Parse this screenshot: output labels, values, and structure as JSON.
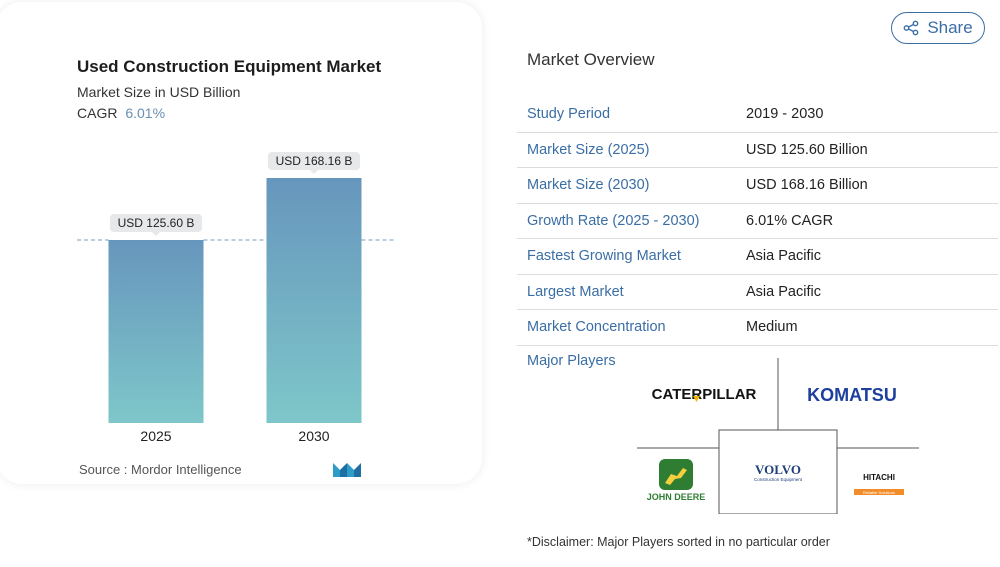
{
  "chart_data": {
    "type": "bar",
    "title": "Used Construction Equipment Market",
    "subtitle": "Market Size in USD Billion",
    "cagr_label": "CAGR",
    "cagr_value": "6.01%",
    "categories": [
      "2025",
      "2030"
    ],
    "values": [
      125.6,
      168.16
    ],
    "data_labels": [
      "USD 125.60 B",
      "USD 168.16 B"
    ],
    "ylim": [
      0,
      168.16
    ],
    "grid": false,
    "reference_line": "dashed at 2025 value",
    "bar_gradient": [
      "#6796bd",
      "#7ec7c9"
    ],
    "source": "Source :  Mordor Intelligence"
  },
  "share": {
    "label": "Share",
    "icon": "share-icon"
  },
  "overview": {
    "title": "Market Overview",
    "rows": [
      {
        "key": "Study Period",
        "value": "2019 - 2030"
      },
      {
        "key": "Market Size (2025)",
        "value": "USD 125.60 Billion"
      },
      {
        "key": "Market Size (2030)",
        "value": "USD 168.16 Billion"
      },
      {
        "key": "Growth Rate (2025 - 2030)",
        "value": "6.01% CAGR"
      },
      {
        "key": "Fastest Growing Market",
        "value": "Asia Pacific"
      },
      {
        "key": "Largest Market",
        "value": "Asia Pacific"
      },
      {
        "key": "Market Concentration",
        "value": "Medium"
      }
    ]
  },
  "players": {
    "label": "Major Players",
    "logos": {
      "caterpillar": "CATERPILLAR",
      "komatsu": "KOMATSU",
      "volvo": "VOLVO",
      "volvo_sub": "Construction Equipment",
      "johndeere": "JOHN DEERE",
      "hitachi": "HITACHI",
      "hitachi_sub": "Reliable Solutions"
    }
  },
  "disclaimer": "*Disclaimer: Major Players sorted in no particular order",
  "colors": {
    "accent": "#3a6ea5",
    "cagr": "#6a8fb3"
  }
}
